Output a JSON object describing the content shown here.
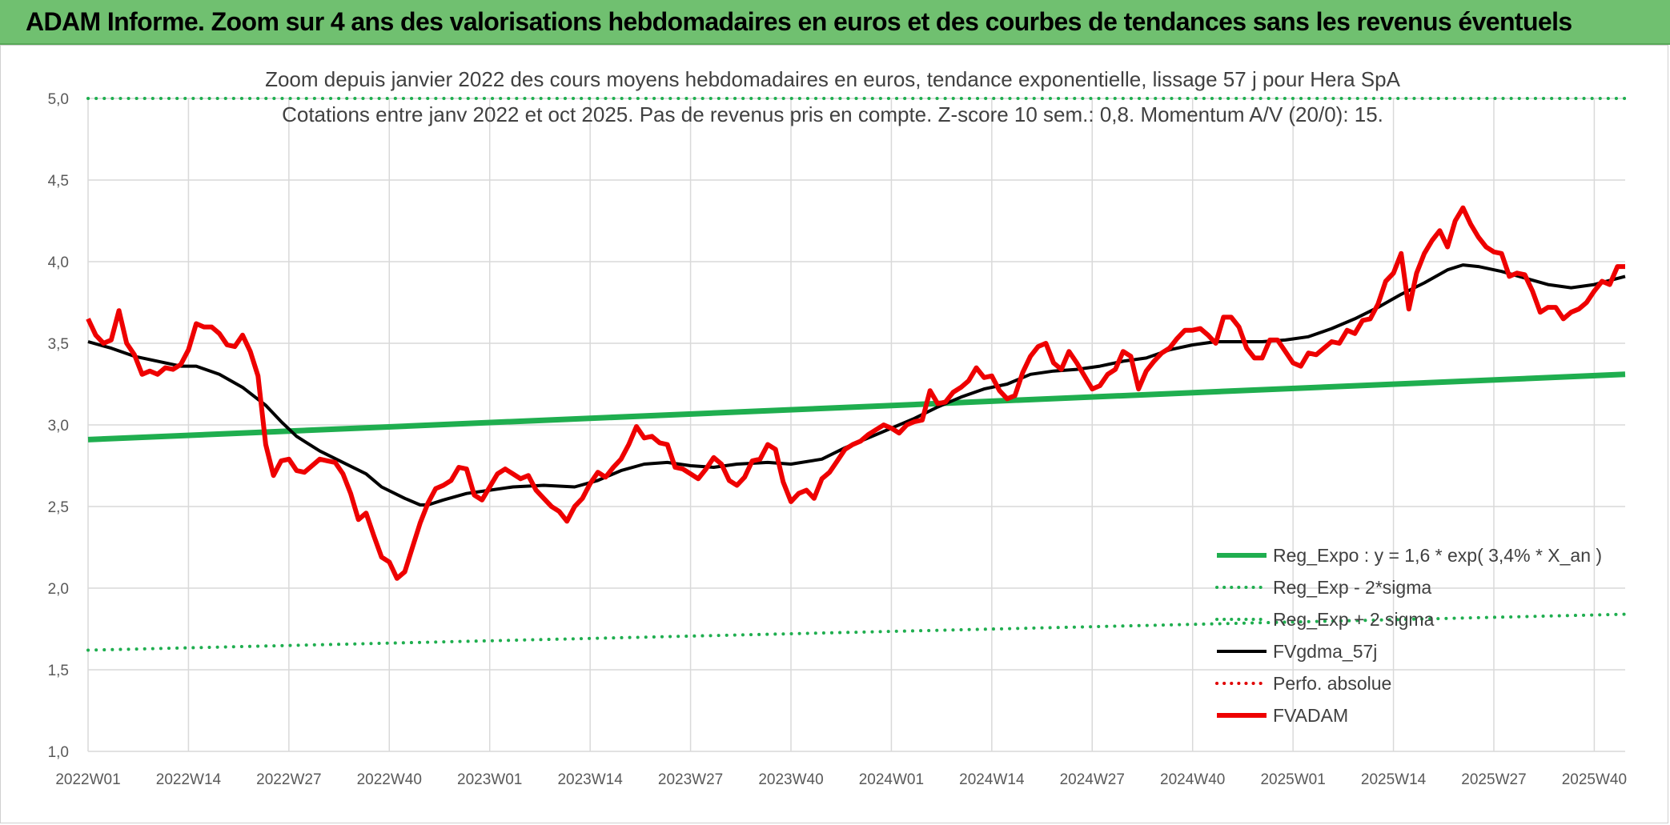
{
  "banner": {
    "title": "ADAM Informe. Zoom sur 4 ans des valorisations hebdomadaires en euros et des courbes de tendances sans les revenus éventuels"
  },
  "chart_data": {
    "type": "line",
    "title": "Zoom depuis janvier 2022 des cours moyens hebdomadaires en euros, tendance exponentielle, lissage 57 j pour Hera SpA",
    "subtitle": "Cotations entre janv 2022 et oct 2025. Pas de revenus pris en compte. Z-score 10 sem.: 0,8. Momentum A/V (20/0): 15.",
    "xlabel": "",
    "ylabel": "",
    "ylim": [
      1.0,
      5.0
    ],
    "yticks": [
      1.0,
      1.5,
      2.0,
      2.5,
      3.0,
      3.5,
      4.0,
      4.5,
      5.0
    ],
    "ytick_labels": [
      "1,0",
      "1,5",
      "2,0",
      "2,5",
      "3,0",
      "3,5",
      "4,0",
      "4,5",
      "5,0"
    ],
    "xticks": [
      {
        "week": 1,
        "label": "2022W01"
      },
      {
        "week": 14,
        "label": "2022W14"
      },
      {
        "week": 27,
        "label": "2022W27"
      },
      {
        "week": 40,
        "label": "2022W40"
      },
      {
        "week": 53,
        "label": "2023W01"
      },
      {
        "week": 66,
        "label": "2023W14"
      },
      {
        "week": 79,
        "label": "2023W27"
      },
      {
        "week": 92,
        "label": "2023W40"
      },
      {
        "week": 105,
        "label": "2024W01"
      },
      {
        "week": 118,
        "label": "2024W14"
      },
      {
        "week": 131,
        "label": "2024W27"
      },
      {
        "week": 144,
        "label": "2024W40"
      },
      {
        "week": 157,
        "label": "2025W01"
      },
      {
        "week": 170,
        "label": "2025W14"
      },
      {
        "week": 183,
        "label": "2025W27"
      },
      {
        "week": 196,
        "label": "2025W40"
      }
    ],
    "x_range": [
      1,
      200
    ],
    "grid": true,
    "legend_position": "bottom-right",
    "series": [
      {
        "name": "Reg_Expo : y = 1,6 * exp( 3,4% *  X_an )",
        "style": "solid",
        "color": "#1fae4f",
        "width": 7,
        "points": [
          [
            1,
            2.91
          ],
          [
            200,
            3.31
          ]
        ]
      },
      {
        "name": "Reg_Exp - 2*sigma",
        "style": "dotted",
        "color": "#1fae4f",
        "width": 4,
        "points": [
          [
            1,
            1.62
          ],
          [
            200,
            1.84
          ]
        ]
      },
      {
        "name": "Reg_Exp + 2 sigma",
        "style": "dotted",
        "color": "#1fae4f",
        "width": 4,
        "points": [
          [
            1,
            5.0
          ],
          [
            200,
            5.0
          ]
        ]
      },
      {
        "name": "FVgdma_57j",
        "style": "solid",
        "color": "#000000",
        "width": 4,
        "points": [
          [
            1,
            3.51
          ],
          [
            4,
            3.47
          ],
          [
            7,
            3.42
          ],
          [
            10,
            3.39
          ],
          [
            13,
            3.36
          ],
          [
            15,
            3.36
          ],
          [
            18,
            3.31
          ],
          [
            21,
            3.23
          ],
          [
            24,
            3.12
          ],
          [
            26,
            3.02
          ],
          [
            28,
            2.93
          ],
          [
            31,
            2.84
          ],
          [
            34,
            2.77
          ],
          [
            37,
            2.7
          ],
          [
            39,
            2.62
          ],
          [
            42,
            2.55
          ],
          [
            44,
            2.51
          ],
          [
            45,
            2.51
          ],
          [
            47,
            2.54
          ],
          [
            50,
            2.58
          ],
          [
            53,
            2.6
          ],
          [
            56,
            2.62
          ],
          [
            60,
            2.63
          ],
          [
            64,
            2.62
          ],
          [
            67,
            2.66
          ],
          [
            70,
            2.72
          ],
          [
            73,
            2.76
          ],
          [
            76,
            2.77
          ],
          [
            79,
            2.75
          ],
          [
            82,
            2.74
          ],
          [
            85,
            2.76
          ],
          [
            89,
            2.77
          ],
          [
            92,
            2.76
          ],
          [
            96,
            2.79
          ],
          [
            99,
            2.86
          ],
          [
            102,
            2.92
          ],
          [
            105,
            2.98
          ],
          [
            108,
            3.04
          ],
          [
            111,
            3.11
          ],
          [
            114,
            3.17
          ],
          [
            117,
            3.22
          ],
          [
            120,
            3.25
          ],
          [
            123,
            3.31
          ],
          [
            126,
            3.33
          ],
          [
            129,
            3.34
          ],
          [
            132,
            3.36
          ],
          [
            135,
            3.39
          ],
          [
            138,
            3.41
          ],
          [
            141,
            3.46
          ],
          [
            144,
            3.49
          ],
          [
            147,
            3.51
          ],
          [
            150,
            3.51
          ],
          [
            153,
            3.51
          ],
          [
            156,
            3.52
          ],
          [
            159,
            3.54
          ],
          [
            162,
            3.59
          ],
          [
            165,
            3.65
          ],
          [
            168,
            3.72
          ],
          [
            171,
            3.8
          ],
          [
            174,
            3.87
          ],
          [
            177,
            3.95
          ],
          [
            179,
            3.98
          ],
          [
            181,
            3.97
          ],
          [
            184,
            3.94
          ],
          [
            187,
            3.9
          ],
          [
            190,
            3.86
          ],
          [
            193,
            3.84
          ],
          [
            196,
            3.86
          ],
          [
            200,
            3.91
          ]
        ]
      },
      {
        "name": "Perfo. absolue",
        "style": "dotted",
        "color": "#e00000",
        "width": 4,
        "points": []
      },
      {
        "name": "FVADAM",
        "style": "solid",
        "color": "#ee0000",
        "width": 6,
        "points": [
          [
            1,
            3.65
          ],
          [
            2,
            3.55
          ],
          [
            3,
            3.5
          ],
          [
            4,
            3.52
          ],
          [
            5,
            3.7
          ],
          [
            6,
            3.5
          ],
          [
            7,
            3.43
          ],
          [
            8,
            3.31
          ],
          [
            9,
            3.33
          ],
          [
            10,
            3.31
          ],
          [
            11,
            3.35
          ],
          [
            12,
            3.34
          ],
          [
            13,
            3.37
          ],
          [
            14,
            3.46
          ],
          [
            15,
            3.62
          ],
          [
            16,
            3.6
          ],
          [
            17,
            3.6
          ],
          [
            18,
            3.56
          ],
          [
            19,
            3.49
          ],
          [
            20,
            3.48
          ],
          [
            21,
            3.55
          ],
          [
            22,
            3.45
          ],
          [
            23,
            3.3
          ],
          [
            24,
            2.88
          ],
          [
            25,
            2.69
          ],
          [
            26,
            2.78
          ],
          [
            27,
            2.79
          ],
          [
            28,
            2.72
          ],
          [
            29,
            2.71
          ],
          [
            30,
            2.75
          ],
          [
            31,
            2.79
          ],
          [
            32,
            2.78
          ],
          [
            33,
            2.77
          ],
          [
            34,
            2.7
          ],
          [
            35,
            2.58
          ],
          [
            36,
            2.42
          ],
          [
            37,
            2.46
          ],
          [
            38,
            2.32
          ],
          [
            39,
            2.19
          ],
          [
            40,
            2.16
          ],
          [
            41,
            2.06
          ],
          [
            42,
            2.1
          ],
          [
            43,
            2.25
          ],
          [
            44,
            2.4
          ],
          [
            45,
            2.52
          ],
          [
            46,
            2.61
          ],
          [
            47,
            2.63
          ],
          [
            48,
            2.66
          ],
          [
            49,
            2.74
          ],
          [
            50,
            2.73
          ],
          [
            51,
            2.57
          ],
          [
            52,
            2.54
          ],
          [
            53,
            2.62
          ],
          [
            54,
            2.7
          ],
          [
            55,
            2.73
          ],
          [
            56,
            2.7
          ],
          [
            57,
            2.67
          ],
          [
            58,
            2.69
          ],
          [
            59,
            2.6
          ],
          [
            60,
            2.55
          ],
          [
            61,
            2.5
          ],
          [
            62,
            2.47
          ],
          [
            63,
            2.41
          ],
          [
            64,
            2.5
          ],
          [
            65,
            2.55
          ],
          [
            66,
            2.64
          ],
          [
            67,
            2.71
          ],
          [
            68,
            2.68
          ],
          [
            69,
            2.74
          ],
          [
            70,
            2.79
          ],
          [
            71,
            2.88
          ],
          [
            72,
            2.99
          ],
          [
            73,
            2.92
          ],
          [
            74,
            2.93
          ],
          [
            75,
            2.89
          ],
          [
            76,
            2.88
          ],
          [
            77,
            2.74
          ],
          [
            78,
            2.73
          ],
          [
            79,
            2.7
          ],
          [
            80,
            2.67
          ],
          [
            81,
            2.73
          ],
          [
            82,
            2.8
          ],
          [
            83,
            2.76
          ],
          [
            84,
            2.66
          ],
          [
            85,
            2.63
          ],
          [
            86,
            2.68
          ],
          [
            87,
            2.78
          ],
          [
            88,
            2.79
          ],
          [
            89,
            2.88
          ],
          [
            90,
            2.85
          ],
          [
            91,
            2.65
          ],
          [
            92,
            2.53
          ],
          [
            93,
            2.58
          ],
          [
            94,
            2.6
          ],
          [
            95,
            2.55
          ],
          [
            96,
            2.67
          ],
          [
            97,
            2.71
          ],
          [
            98,
            2.78
          ],
          [
            99,
            2.85
          ],
          [
            100,
            2.88
          ],
          [
            101,
            2.9
          ],
          [
            102,
            2.94
          ],
          [
            103,
            2.97
          ],
          [
            104,
            3.0
          ],
          [
            105,
            2.98
          ],
          [
            106,
            2.95
          ],
          [
            107,
            3.0
          ],
          [
            108,
            3.02
          ],
          [
            109,
            3.03
          ],
          [
            110,
            3.21
          ],
          [
            111,
            3.13
          ],
          [
            112,
            3.14
          ],
          [
            113,
            3.2
          ],
          [
            114,
            3.23
          ],
          [
            115,
            3.27
          ],
          [
            116,
            3.35
          ],
          [
            117,
            3.29
          ],
          [
            118,
            3.3
          ],
          [
            119,
            3.21
          ],
          [
            120,
            3.16
          ],
          [
            121,
            3.18
          ],
          [
            122,
            3.32
          ],
          [
            123,
            3.42
          ],
          [
            124,
            3.48
          ],
          [
            125,
            3.5
          ],
          [
            126,
            3.38
          ],
          [
            127,
            3.34
          ],
          [
            128,
            3.45
          ],
          [
            129,
            3.38
          ],
          [
            130,
            3.3
          ],
          [
            131,
            3.22
          ],
          [
            132,
            3.24
          ],
          [
            133,
            3.31
          ],
          [
            134,
            3.34
          ],
          [
            135,
            3.45
          ],
          [
            136,
            3.42
          ],
          [
            137,
            3.22
          ],
          [
            138,
            3.33
          ],
          [
            139,
            3.39
          ],
          [
            140,
            3.44
          ],
          [
            141,
            3.47
          ],
          [
            142,
            3.53
          ],
          [
            143,
            3.58
          ],
          [
            144,
            3.58
          ],
          [
            145,
            3.59
          ],
          [
            146,
            3.55
          ],
          [
            147,
            3.5
          ],
          [
            148,
            3.66
          ],
          [
            149,
            3.66
          ],
          [
            150,
            3.6
          ],
          [
            151,
            3.47
          ],
          [
            152,
            3.41
          ],
          [
            153,
            3.41
          ],
          [
            154,
            3.52
          ],
          [
            155,
            3.52
          ],
          [
            156,
            3.45
          ],
          [
            157,
            3.38
          ],
          [
            158,
            3.36
          ],
          [
            159,
            3.44
          ],
          [
            160,
            3.43
          ],
          [
            161,
            3.47
          ],
          [
            162,
            3.51
          ],
          [
            163,
            3.5
          ],
          [
            164,
            3.58
          ],
          [
            165,
            3.56
          ],
          [
            166,
            3.64
          ],
          [
            167,
            3.65
          ],
          [
            168,
            3.74
          ],
          [
            169,
            3.88
          ],
          [
            170,
            3.93
          ],
          [
            171,
            4.05
          ],
          [
            172,
            3.71
          ],
          [
            173,
            3.93
          ],
          [
            174,
            4.05
          ],
          [
            175,
            4.13
          ],
          [
            176,
            4.19
          ],
          [
            177,
            4.09
          ],
          [
            178,
            4.25
          ],
          [
            179,
            4.33
          ],
          [
            180,
            4.23
          ],
          [
            181,
            4.15
          ],
          [
            182,
            4.09
          ],
          [
            183,
            4.06
          ],
          [
            184,
            4.05
          ],
          [
            185,
            3.91
          ],
          [
            186,
            3.93
          ],
          [
            187,
            3.92
          ],
          [
            188,
            3.82
          ],
          [
            189,
            3.69
          ],
          [
            190,
            3.72
          ],
          [
            191,
            3.72
          ],
          [
            192,
            3.65
          ],
          [
            193,
            3.69
          ],
          [
            194,
            3.71
          ],
          [
            195,
            3.75
          ],
          [
            196,
            3.82
          ],
          [
            197,
            3.88
          ],
          [
            198,
            3.86
          ],
          [
            199,
            3.97
          ],
          [
            200,
            3.97
          ]
        ]
      }
    ]
  }
}
